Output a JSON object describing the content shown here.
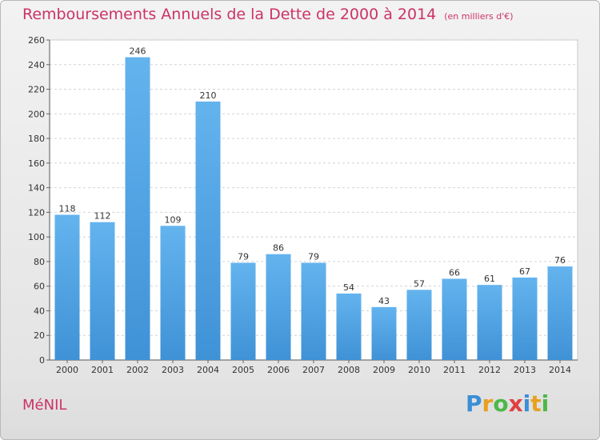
{
  "chart_data": {
    "type": "bar",
    "title": "Remboursements Annuels de la Dette de 2000 à 2014",
    "subtitle": "(en milliers d'€)",
    "categories": [
      "2000",
      "2001",
      "2002",
      "2003",
      "2004",
      "2005",
      "2006",
      "2007",
      "2008",
      "2009",
      "2010",
      "2011",
      "2012",
      "2013",
      "2014"
    ],
    "values": [
      118,
      112,
      246,
      109,
      210,
      79,
      86,
      79,
      54,
      43,
      57,
      66,
      61,
      67,
      76
    ],
    "ylim": [
      0,
      260
    ],
    "yticks": [
      0,
      20,
      40,
      60,
      80,
      100,
      120,
      140,
      160,
      180,
      200,
      220,
      240,
      260
    ],
    "grid": true,
    "bar_color": "#3f92d6"
  },
  "footer": {
    "commune": "MéNIL",
    "logo_letters": [
      {
        "ch": "P",
        "color": "#3a8fd6"
      },
      {
        "ch": "r",
        "color": "#e8a020"
      },
      {
        "ch": "o",
        "color": "#4db848"
      },
      {
        "ch": "x",
        "color": "#e04040"
      },
      {
        "ch": "i",
        "color": "#3a8fd6"
      },
      {
        "ch": "t",
        "color": "#e8a020"
      },
      {
        "ch": "i",
        "color": "#4db848"
      }
    ]
  }
}
